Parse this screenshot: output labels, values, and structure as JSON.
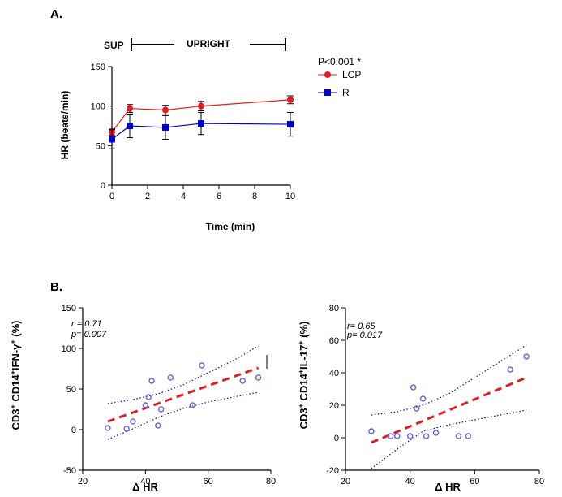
{
  "panels": {
    "a": "A.",
    "b": "B."
  },
  "chart_data": [
    {
      "type": "line",
      "title": "",
      "xlabel": "Time (min)",
      "ylabel": "HR (beats/min)",
      "xlim": [
        0,
        10
      ],
      "ylim": [
        0,
        150
      ],
      "xticks": [
        0,
        2,
        4,
        6,
        8,
        10
      ],
      "yticks": [
        0,
        50,
        100,
        150
      ],
      "phases": {
        "sup": "SUP",
        "upright": "UPRIGHT"
      },
      "significance": "P<0.001 *",
      "series": [
        {
          "name": "LCP",
          "color": "#e41a1c",
          "marker": "circle",
          "x": [
            0,
            1,
            3,
            5,
            10
          ],
          "y": [
            67,
            97,
            95,
            100,
            108
          ],
          "err": [
            4,
            5,
            6,
            6,
            5
          ]
        },
        {
          "name": "R",
          "color": "#0000cc",
          "marker": "square",
          "x": [
            0,
            1,
            3,
            5,
            10
          ],
          "y": [
            58,
            75,
            73,
            78,
            77
          ],
          "err": [
            12,
            15,
            15,
            14,
            15
          ]
        }
      ]
    },
    {
      "type": "scatter",
      "xlabel": "Δ HR",
      "ylabel_parts": {
        "a": "CD3",
        "a_sup": "+",
        "b": " CD14",
        "b_sup": "+",
        "c": "IFN-γ",
        "c_sup": "+",
        "d": " (%)"
      },
      "xlim": [
        20,
        80
      ],
      "ylim": [
        -50,
        150
      ],
      "xticks": [
        20,
        40,
        60,
        80
      ],
      "yticks": [
        -50,
        0,
        50,
        100,
        150
      ],
      "stats": {
        "r": "r = 0.71",
        "p": "p= 0.007"
      },
      "points": {
        "x": [
          28,
          34,
          36,
          40,
          41,
          42,
          44,
          45,
          48,
          55,
          58,
          71,
          76
        ],
        "y": [
          2,
          1,
          10,
          30,
          40,
          60,
          5,
          25,
          64,
          30,
          79,
          60,
          64
        ]
      },
      "fit": {
        "x": [
          28,
          76
        ],
        "y": [
          10,
          76
        ]
      },
      "ci_upper": {
        "x": [
          28,
          36,
          44,
          52,
          60,
          68,
          76
        ],
        "y": [
          32,
          37,
          44,
          55,
          70,
          85,
          103
        ]
      },
      "ci_lower": {
        "x": [
          28,
          36,
          44,
          52,
          60,
          68,
          76
        ],
        "y": [
          -12,
          1,
          15,
          26,
          34,
          40,
          46
        ]
      }
    },
    {
      "type": "scatter",
      "xlabel": "Δ HR",
      "ylabel_parts": {
        "a": "CD3",
        "a_sup": "+",
        "b": " CD14",
        "b_sup": "+",
        "c": "IL-17",
        "c_sup": "+",
        "d": " (%)"
      },
      "xlim": [
        20,
        80
      ],
      "ylim": [
        -20,
        80
      ],
      "xticks": [
        20,
        40,
        60,
        80
      ],
      "yticks": [
        -20,
        0,
        20,
        40,
        60,
        80
      ],
      "stats": {
        "r": "r= 0.65",
        "p": "p= 0.017"
      },
      "points": {
        "x": [
          28,
          34,
          36,
          40,
          41,
          42,
          44,
          45,
          48,
          55,
          58,
          71,
          76
        ],
        "y": [
          4,
          1,
          1,
          1,
          31,
          18,
          24,
          1,
          3,
          1,
          1,
          42,
          50
        ]
      },
      "fit": {
        "x": [
          28,
          76
        ],
        "y": [
          -3,
          37
        ]
      },
      "ci_upper": {
        "x": [
          28,
          36,
          44,
          52,
          60,
          68,
          76
        ],
        "y": [
          14,
          16,
          20,
          27,
          37,
          47,
          57
        ]
      },
      "ci_lower": {
        "x": [
          28,
          36,
          44,
          52,
          60,
          68,
          76
        ],
        "y": [
          -19,
          -7,
          4,
          8,
          11,
          14,
          17
        ]
      }
    }
  ]
}
